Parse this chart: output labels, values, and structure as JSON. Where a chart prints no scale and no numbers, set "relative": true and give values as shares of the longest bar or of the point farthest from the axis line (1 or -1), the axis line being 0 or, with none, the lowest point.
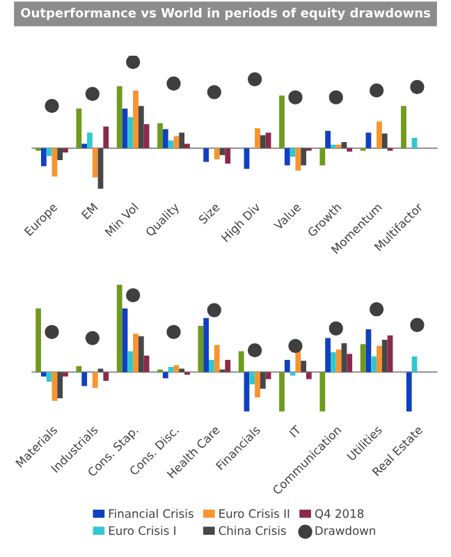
{
  "chart_data": [
    {
      "type": "bar",
      "title": "Outperformance vs World in periods of equity drawdowns",
      "relative": true,
      "categories": [
        "Europe",
        "EM",
        "Min Vol",
        "Quality",
        "Size",
        "High Div",
        "Value",
        "Growth",
        "Momentum",
        "Multifactor"
      ],
      "series": [
        {
          "color": "#6f9a1e",
          "values": [
            -0.03,
            0.46,
            0.72,
            0.29,
            0,
            0,
            0.61,
            -0.2,
            -0.03,
            0.49
          ]
        },
        {
          "color": "#1040c0",
          "values": [
            -0.21,
            0.05,
            0.46,
            0.22,
            -0.16,
            -0.24,
            -0.2,
            0.2,
            0.18,
            null
          ]
        },
        {
          "color": "#30c8d0",
          "values": [
            -0.09,
            0.18,
            0.36,
            0.09,
            0,
            0,
            -0.1,
            0.04,
            0,
            0.12
          ]
        },
        {
          "color": "#f79430",
          "values": [
            -0.33,
            -0.34,
            0.67,
            0.14,
            -0.13,
            0.23,
            -0.26,
            0.04,
            0.31,
            null
          ]
        },
        {
          "color": "#474747",
          "values": [
            -0.14,
            -0.47,
            0.49,
            0.18,
            -0.08,
            0.15,
            -0.2,
            0.07,
            0.17,
            null
          ]
        },
        {
          "color": "#8b2a4a",
          "values": [
            -0.05,
            0.25,
            0.28,
            0.05,
            -0.18,
            0.18,
            -0.03,
            -0.04,
            -0.03,
            null
          ]
        },
        {
          "type": "scatter",
          "marker": "circle",
          "color": "#3f3f3f",
          "values": [
            0.49,
            0.63,
            1,
            0.75,
            0.65,
            0.8,
            0.59,
            0.59,
            0.67,
            0.71
          ]
        }
      ]
    },
    {
      "type": "bar",
      "relative": true,
      "legend": "bottom",
      "categories": [
        "Materials",
        "Industrials",
        "Cons. Stap.",
        "Cons. Disc.",
        "Health Care",
        "Financials",
        "IT",
        "Communication",
        "Utilities",
        "Real Estate"
      ],
      "series": [
        {
          "color": "#6f9a1e",
          "values": [
            0.73,
            0.07,
            1,
            0.03,
            0.53,
            0.24,
            -0.45,
            -0.45,
            0.32,
            0
          ]
        },
        {
          "name": "Financial Crisis",
          "color": "#1040c0",
          "values": [
            -0.05,
            -0.16,
            0.73,
            -0.07,
            0.62,
            -0.45,
            0.14,
            0.39,
            0.49,
            -0.45
          ]
        },
        {
          "name": "Euro Crisis I",
          "color": "#30c8d0",
          "values": [
            -0.11,
            0.01,
            0.24,
            0.06,
            0.14,
            -0.14,
            -0.04,
            0.23,
            0.18,
            0.18
          ]
        },
        {
          "name": "Euro Crisis II",
          "color": "#f79430",
          "values": [
            -0.33,
            -0.18,
            0.44,
            0.08,
            0.31,
            -0.29,
            0.27,
            0.26,
            0.3,
            null
          ]
        },
        {
          "name": "China Crisis",
          "color": "#474747",
          "values": [
            -0.3,
            0.04,
            0.41,
            0.04,
            0.03,
            -0.19,
            0.13,
            0.33,
            0.37,
            null
          ]
        },
        {
          "name": "Q4 2018",
          "color": "#8b2a4a",
          "values": [
            -0.05,
            -0.1,
            0.19,
            -0.03,
            0.14,
            -0.08,
            -0.08,
            0.21,
            0.42,
            null
          ]
        },
        {
          "name": "Drawdown",
          "type": "scatter",
          "marker": "circle",
          "color": "#3f3f3f",
          "values": [
            0.46,
            0.39,
            0.88,
            0.46,
            0.71,
            0.25,
            0.3,
            0.5,
            0.72,
            0.54
          ]
        }
      ]
    }
  ]
}
